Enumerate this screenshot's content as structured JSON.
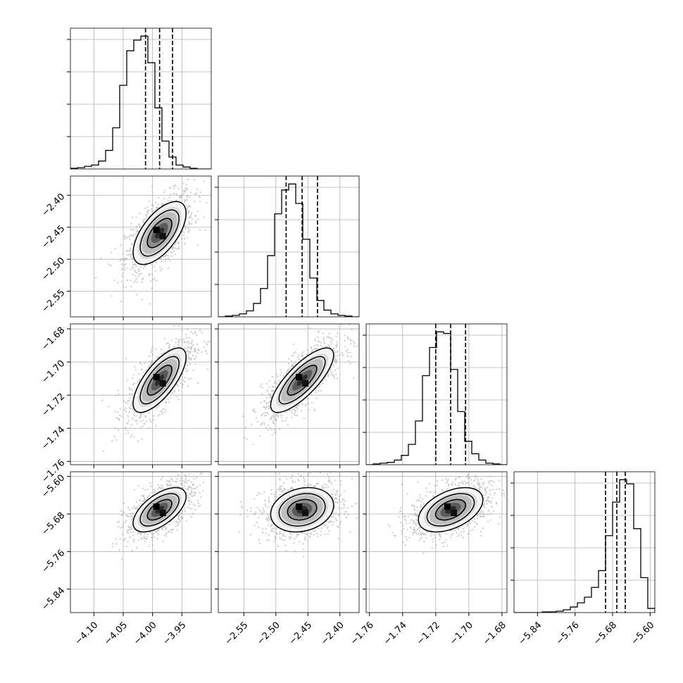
{
  "chart_data": {
    "type": "corner",
    "grid": true,
    "parameters": [
      {
        "index": 0,
        "range": [
          -4.14,
          -3.9
        ],
        "ticks": [
          -4.1,
          -4.05,
          -4.0,
          -3.95
        ],
        "tick_labels": [
          "−4.10",
          "−4.05",
          "−4.00",
          "−3.95"
        ],
        "quantiles": [
          -4.012,
          -3.988,
          -3.966
        ],
        "mean": -3.988,
        "sd": 0.022
      },
      {
        "index": 1,
        "range": [
          -2.59,
          -2.37
        ],
        "ticks": [
          -2.55,
          -2.5,
          -2.45,
          -2.4
        ],
        "tick_labels": [
          "−2.55",
          "−2.50",
          "−2.45",
          "−2.40"
        ],
        "quantiles": [
          -2.484,
          -2.459,
          -2.435
        ],
        "mean": -2.459,
        "sd": 0.024
      },
      {
        "index": 2,
        "range": [
          -1.762,
          -1.677
        ],
        "ticks": [
          -1.76,
          -1.74,
          -1.72,
          -1.7,
          -1.68
        ],
        "tick_labels": [
          "−1.76",
          "−1.74",
          "−1.72",
          "−1.70",
          "−1.68"
        ],
        "quantiles": [
          -1.72,
          -1.711,
          -1.702
        ],
        "mean": -1.711,
        "sd": 0.0095
      },
      {
        "index": 3,
        "range": [
          -5.89,
          -5.59
        ],
        "ticks": [
          -5.84,
          -5.76,
          -5.68,
          -5.6
        ],
        "tick_labels": [
          "−5.84",
          "−5.76",
          "−5.68",
          "−5.60"
        ],
        "quantiles": [
          -5.695,
          -5.671,
          -5.653
        ],
        "mean": -5.671,
        "sd": 0.023
      }
    ],
    "histograms": [
      {
        "param": 0,
        "bins": 20,
        "counts": [
          1,
          2,
          4,
          6,
          12,
          28,
          62,
          126,
          178,
          194,
          200,
          160,
          92,
          42,
          18,
          6,
          3,
          1,
          0,
          0
        ]
      },
      {
        "param": 1,
        "bins": 20,
        "counts": [
          0,
          1,
          2,
          4,
          8,
          18,
          38,
          82,
          138,
          170,
          178,
          152,
          104,
          52,
          22,
          9,
          4,
          2,
          1,
          0
        ]
      },
      {
        "param": 2,
        "bins": 20,
        "counts": [
          0,
          1,
          2,
          3,
          6,
          12,
          26,
          56,
          114,
          150,
          170,
          168,
          122,
          68,
          30,
          14,
          6,
          2,
          1,
          0
        ]
      },
      {
        "param": 3,
        "bins": 20,
        "counts": [
          0,
          0,
          0,
          0,
          1,
          1,
          2,
          4,
          8,
          14,
          22,
          36,
          60,
          110,
          158,
          190,
          184,
          120,
          50,
          6
        ]
      }
    ],
    "pairs": [
      {
        "x_param": 0,
        "y_param": 1,
        "correlation": 0.62
      },
      {
        "x_param": 0,
        "y_param": 2,
        "correlation": 0.72
      },
      {
        "x_param": 1,
        "y_param": 2,
        "correlation": 0.78
      },
      {
        "x_param": 0,
        "y_param": 3,
        "correlation": 0.6
      },
      {
        "x_param": 1,
        "y_param": 3,
        "correlation": 0.2
      },
      {
        "x_param": 2,
        "y_param": 3,
        "correlation": 0.45
      }
    ],
    "contour_levels_sigma": [
      0.5,
      1.0,
      1.5
    ],
    "colors": {
      "line": "#000000",
      "grid": "#b0b0b0",
      "points": "#9e9e9e"
    }
  }
}
